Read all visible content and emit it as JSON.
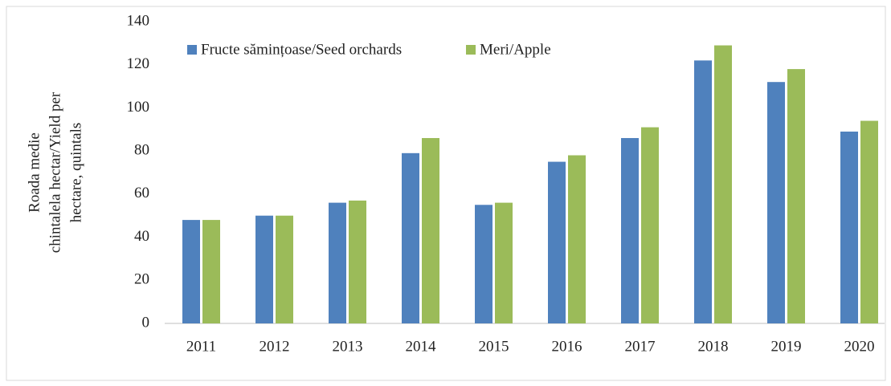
{
  "chart_data": {
    "type": "bar",
    "y_label": [
      "Roada medie",
      "chintalela hectar/Yield per",
      "hectare, quintals"
    ],
    "categories": [
      "2011",
      "2012",
      "2013",
      "2014",
      "2015",
      "2016",
      "2017",
      "2018",
      "2019",
      "2020"
    ],
    "series": [
      {
        "name": "Fructe sămințoase/Seed orchards",
        "color": "#4f81bd",
        "values": [
          48,
          50,
          56,
          79,
          55,
          75,
          86,
          122,
          112,
          89
        ]
      },
      {
        "name": "Meri/Apple",
        "color": "#9bbb59",
        "values": [
          48,
          50,
          57,
          86,
          56,
          78,
          91,
          129,
          118,
          94
        ]
      }
    ],
    "ylim": [
      0,
      140
    ],
    "yticks": [
      0,
      20,
      40,
      60,
      80,
      100,
      120,
      140
    ],
    "grid": false,
    "legend": "top"
  }
}
